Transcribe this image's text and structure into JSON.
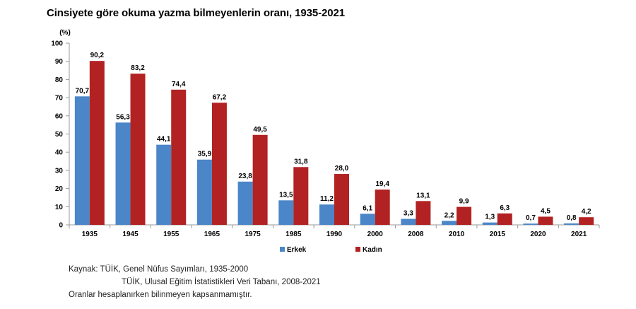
{
  "title": "Cinsiyete göre okuma yazma bilmeyenlerin oranı, 1935-2021",
  "notes": {
    "line1": "Kaynak: TÜİK, Genel Nüfus Sayımları, 1935-2000",
    "line2": "TÜİK, Ulusal Eğitim İstatistikleri Veri Tabanı, 2008-2021",
    "line3": "Oranlar hesaplanırken bilinmeyen kapsanmamıştır."
  },
  "colors": {
    "erkek": "#4a86c8",
    "kadin": "#b22222",
    "axis": "#9a9a9a"
  },
  "chart_data": {
    "type": "bar",
    "title": "Cinsiyete göre okuma yazma bilmeyenlerin oranı, 1935-2021",
    "ylabel": "(%)",
    "xlabel": "",
    "ylim": [
      0,
      100
    ],
    "yticks": [
      "0",
      "10",
      "20",
      "30",
      "40",
      "50",
      "60",
      "70",
      "80",
      "90",
      "100"
    ],
    "grid": false,
    "legend": "bottom-center",
    "categories": [
      "1935",
      "1945",
      "1955",
      "1965",
      "1975",
      "1985",
      "1990",
      "2000",
      "2008",
      "2010",
      "2015",
      "2020",
      "2021"
    ],
    "series": [
      {
        "name": "Erkek",
        "values": [
          70.7,
          56.3,
          44.1,
          35.9,
          23.8,
          13.5,
          11.2,
          6.1,
          3.3,
          2.2,
          1.3,
          0.7,
          0.8
        ],
        "labels": [
          "70,7",
          "56,3",
          "44,1",
          "35,9",
          "23,8",
          "13,5",
          "11,2",
          "6,1",
          "3,3",
          "2,2",
          "1,3",
          "0,7",
          "0,8"
        ]
      },
      {
        "name": "Kadın",
        "values": [
          90.2,
          83.2,
          74.4,
          67.2,
          49.5,
          31.8,
          28.0,
          19.4,
          13.1,
          9.9,
          6.3,
          4.5,
          4.2
        ],
        "labels": [
          "90,2",
          "83,2",
          "74,4",
          "67,2",
          "49,5",
          "31,8",
          "28,0",
          "19,4",
          "13,1",
          "9,9",
          "6,3",
          "4,5",
          "4,2"
        ]
      }
    ]
  }
}
